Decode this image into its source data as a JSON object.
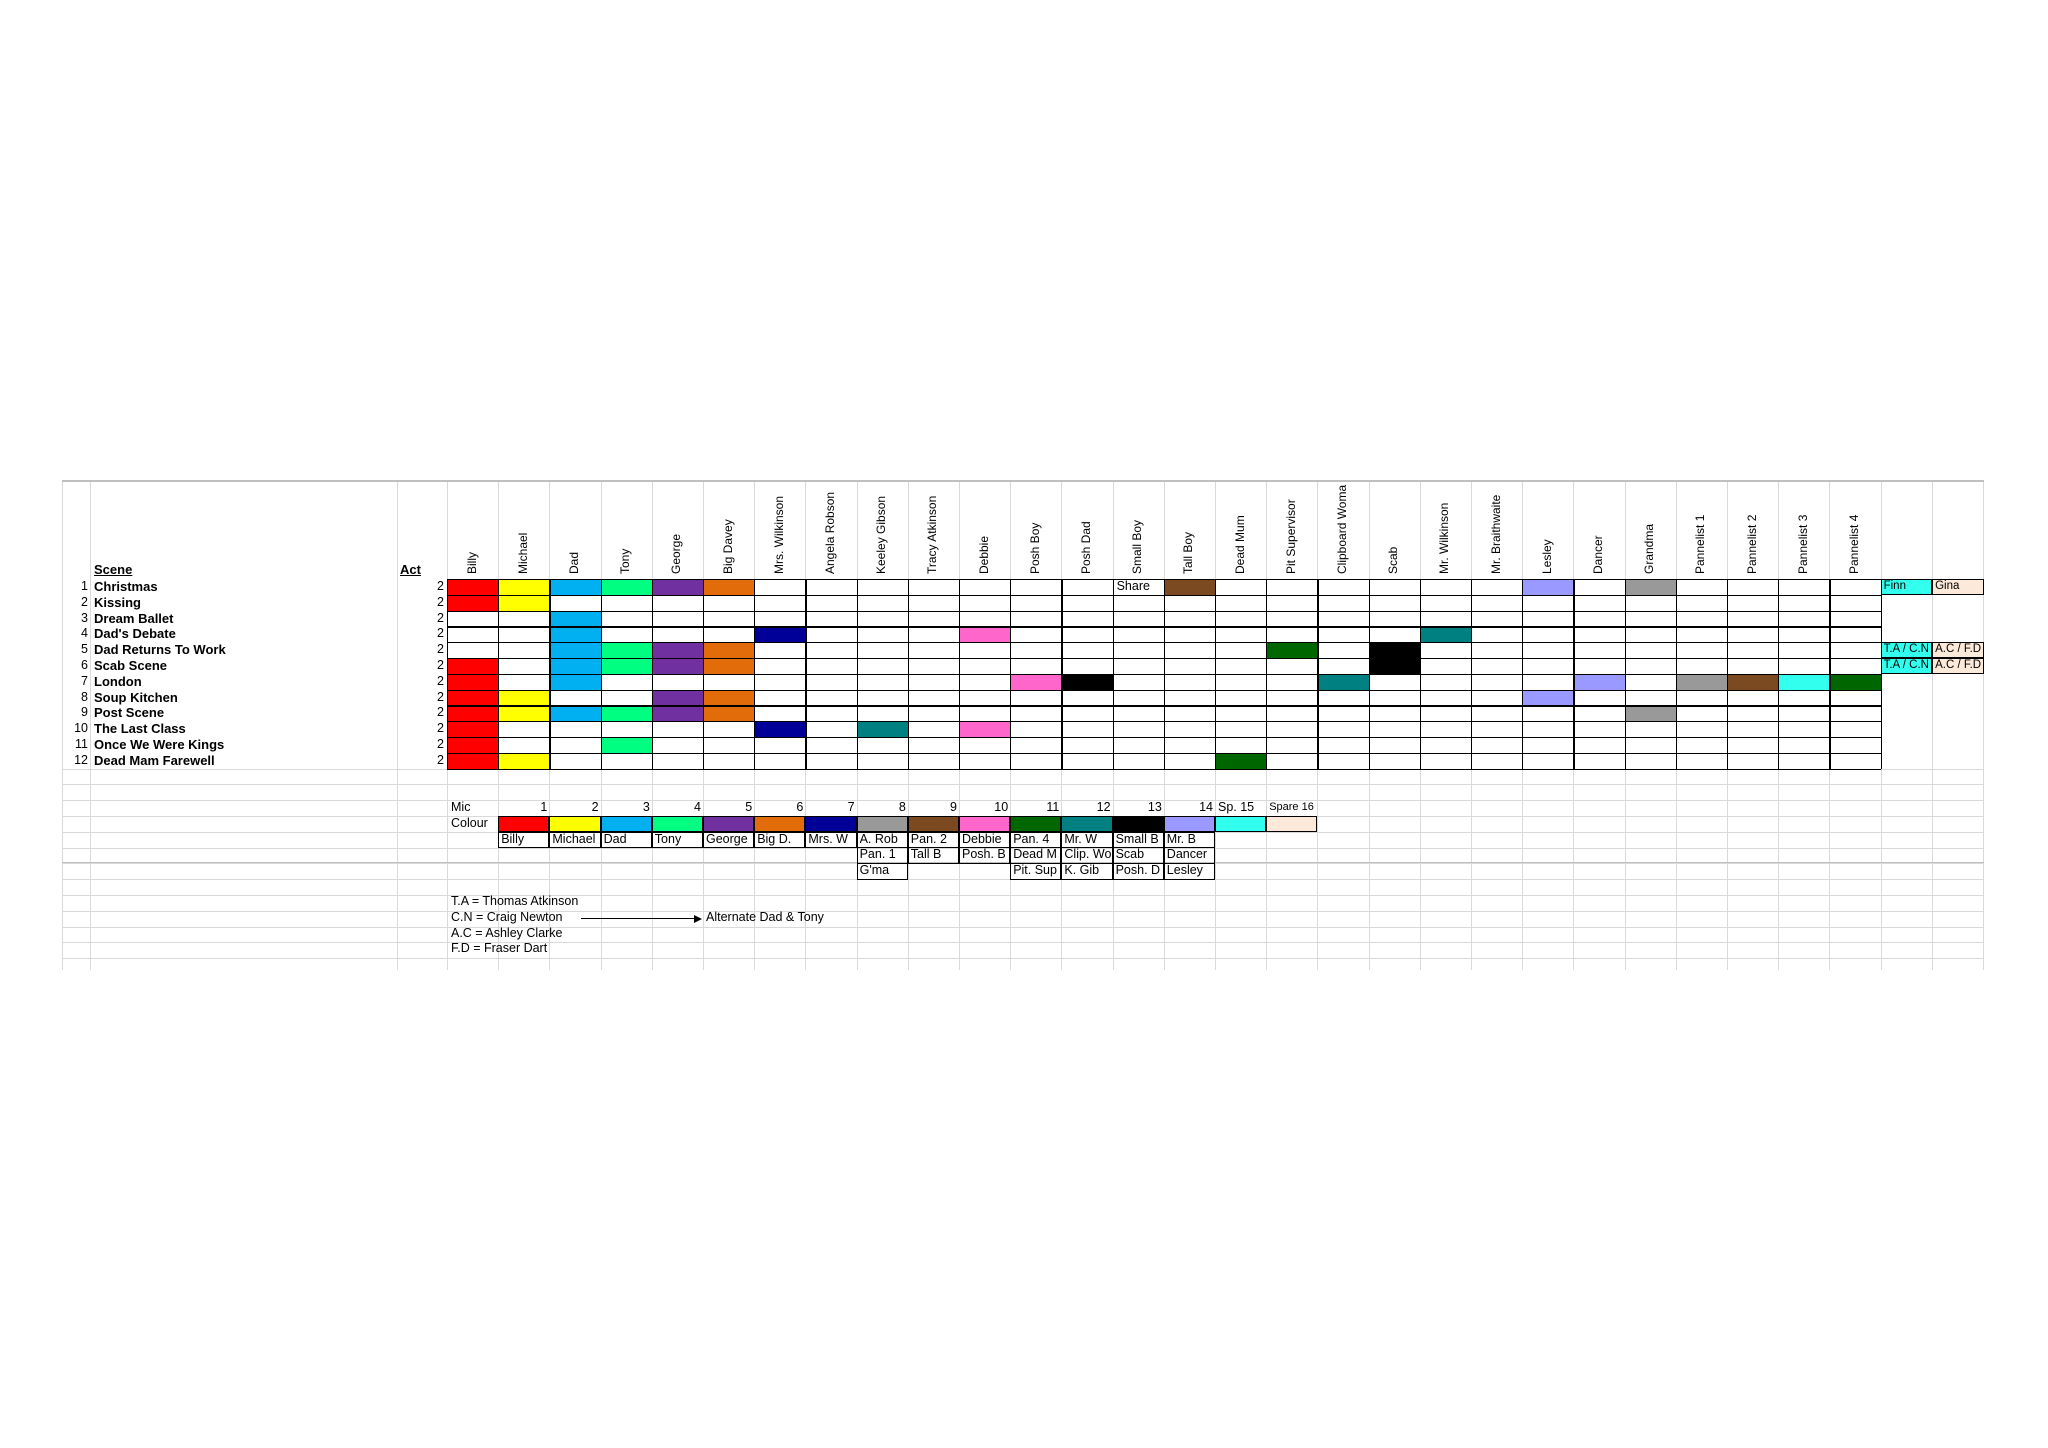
{
  "headers": {
    "scene": "Scene",
    "act": "Act"
  },
  "characters": [
    "Billy",
    "Michael",
    "Dad",
    "Tony",
    "George",
    "Big Davey",
    "Mrs. Wilkinson",
    "Angela Robson",
    "Keeley Gibson",
    "Tracy Atkinson",
    "Debbie",
    "Posh Boy",
    "Posh Dad",
    "Small Boy",
    "Tall Boy",
    "Dead Mum",
    "Pit Supervisor",
    "Clipboard Woma",
    "Scab",
    "Mr. Wilkinson",
    "Mr. Braithwaite",
    "Lesley",
    "Dancer",
    "Grandma",
    "Pannelist 1",
    "Pannelist 2",
    "Pannelist 3",
    "Pannelist 4"
  ],
  "scenes": [
    {
      "num": "1",
      "name": "Christmas",
      "act": "2"
    },
    {
      "num": "2",
      "name": "Kissing",
      "act": "2"
    },
    {
      "num": "3",
      "name": "Dream Ballet",
      "act": "2"
    },
    {
      "num": "4",
      "name": "Dad's Debate",
      "act": "2"
    },
    {
      "num": "5",
      "name": "Dad Returns To Work",
      "act": "2"
    },
    {
      "num": "6",
      "name": "Scab Scene",
      "act": "2"
    },
    {
      "num": "7",
      "name": "London",
      "act": "2"
    },
    {
      "num": "8",
      "name": "Soup Kitchen",
      "act": "2"
    },
    {
      "num": "9",
      "name": "Post Scene",
      "act": "2"
    },
    {
      "num": "10",
      "name": "The Last Class",
      "act": "2"
    },
    {
      "num": "11",
      "name": "Once We Were Kings",
      "act": "2"
    },
    {
      "num": "12",
      "name": "Dead Mam Farewell",
      "act": "2"
    }
  ],
  "grid_fills": [
    {
      "row": 0,
      "col": 0,
      "color": "#ff0000"
    },
    {
      "row": 0,
      "col": 1,
      "color": "#ffff00"
    },
    {
      "row": 0,
      "col": 2,
      "color": "#00b0f0"
    },
    {
      "row": 0,
      "col": 3,
      "color": "#00ff80"
    },
    {
      "row": 0,
      "col": 4,
      "color": "#7030a0"
    },
    {
      "row": 0,
      "col": 5,
      "color": "#e26b0a"
    },
    {
      "row": 0,
      "col": 14,
      "color": "#7b4a21"
    },
    {
      "row": 0,
      "col": 21,
      "color": "#9999ff"
    },
    {
      "row": 0,
      "col": 23,
      "color": "#999999"
    },
    {
      "row": 1,
      "col": 0,
      "color": "#ff0000"
    },
    {
      "row": 1,
      "col": 1,
      "color": "#ffff00"
    },
    {
      "row": 2,
      "col": 2,
      "color": "#00b0f0"
    },
    {
      "row": 3,
      "col": 2,
      "color": "#00b0f0"
    },
    {
      "row": 3,
      "col": 6,
      "color": "#000099"
    },
    {
      "row": 3,
      "col": 10,
      "color": "#ff66cc"
    },
    {
      "row": 3,
      "col": 19,
      "color": "#008080"
    },
    {
      "row": 4,
      "col": 2,
      "color": "#00b0f0"
    },
    {
      "row": 4,
      "col": 3,
      "color": "#00ff80"
    },
    {
      "row": 4,
      "col": 4,
      "color": "#7030a0"
    },
    {
      "row": 4,
      "col": 5,
      "color": "#e26b0a"
    },
    {
      "row": 4,
      "col": 16,
      "color": "#006600"
    },
    {
      "row": 4,
      "col": 18,
      "color": "#000000"
    },
    {
      "row": 5,
      "col": 0,
      "color": "#ff0000"
    },
    {
      "row": 5,
      "col": 2,
      "color": "#00b0f0"
    },
    {
      "row": 5,
      "col": 3,
      "color": "#00ff80"
    },
    {
      "row": 5,
      "col": 4,
      "color": "#7030a0"
    },
    {
      "row": 5,
      "col": 5,
      "color": "#e26b0a"
    },
    {
      "row": 5,
      "col": 18,
      "color": "#000000"
    },
    {
      "row": 6,
      "col": 0,
      "color": "#ff0000"
    },
    {
      "row": 6,
      "col": 2,
      "color": "#00b0f0"
    },
    {
      "row": 6,
      "col": 11,
      "color": "#ff66cc"
    },
    {
      "row": 6,
      "col": 12,
      "color": "#000000"
    },
    {
      "row": 6,
      "col": 17,
      "color": "#008080"
    },
    {
      "row": 6,
      "col": 22,
      "color": "#9999ff"
    },
    {
      "row": 6,
      "col": 24,
      "color": "#999999"
    },
    {
      "row": 6,
      "col": 25,
      "color": "#7b4a21"
    },
    {
      "row": 6,
      "col": 26,
      "color": "#33ffee"
    },
    {
      "row": 6,
      "col": 27,
      "color": "#006600"
    },
    {
      "row": 7,
      "col": 0,
      "color": "#ff0000"
    },
    {
      "row": 7,
      "col": 1,
      "color": "#ffff00"
    },
    {
      "row": 7,
      "col": 4,
      "color": "#7030a0"
    },
    {
      "row": 7,
      "col": 5,
      "color": "#e26b0a"
    },
    {
      "row": 7,
      "col": 21,
      "color": "#9999ff"
    },
    {
      "row": 8,
      "col": 0,
      "color": "#ff0000"
    },
    {
      "row": 8,
      "col": 1,
      "color": "#ffff00"
    },
    {
      "row": 8,
      "col": 2,
      "color": "#00b0f0"
    },
    {
      "row": 8,
      "col": 3,
      "color": "#00ff80"
    },
    {
      "row": 8,
      "col": 4,
      "color": "#7030a0"
    },
    {
      "row": 8,
      "col": 5,
      "color": "#e26b0a"
    },
    {
      "row": 8,
      "col": 23,
      "color": "#999999"
    },
    {
      "row": 9,
      "col": 0,
      "color": "#ff0000"
    },
    {
      "row": 9,
      "col": 6,
      "color": "#000099"
    },
    {
      "row": 9,
      "col": 8,
      "color": "#008080"
    },
    {
      "row": 9,
      "col": 10,
      "color": "#ff66cc"
    },
    {
      "row": 10,
      "col": 0,
      "color": "#ff0000"
    },
    {
      "row": 10,
      "col": 3,
      "color": "#00ff80"
    },
    {
      "row": 11,
      "col": 0,
      "color": "#ff0000"
    },
    {
      "row": 11,
      "col": 1,
      "color": "#ffff00"
    },
    {
      "row": 11,
      "col": 15,
      "color": "#006600"
    }
  ],
  "grid_text": [
    {
      "row": 0,
      "col": 13,
      "text": "Share"
    }
  ],
  "extra_cols": [
    {
      "row": 0,
      "col": 0,
      "text": "Finn",
      "color": "#33ffee"
    },
    {
      "row": 0,
      "col": 1,
      "text": "Gina",
      "color": "#fde9d9"
    },
    {
      "row": 4,
      "col": 0,
      "text": "T.A / C.N",
      "color": "#33ffee"
    },
    {
      "row": 4,
      "col": 1,
      "text": "A.C / F.D",
      "color": "#fde9d9"
    },
    {
      "row": 5,
      "col": 0,
      "text": "T.A / C.N",
      "color": "#33ffee"
    },
    {
      "row": 5,
      "col": 1,
      "text": "A.C / F.D",
      "color": "#fde9d9"
    }
  ],
  "mic": {
    "mic_label": "Mic",
    "colour_label": "Colour",
    "numbers": [
      "1",
      "2",
      "3",
      "4",
      "5",
      "6",
      "7",
      "8",
      "9",
      "10",
      "11",
      "12",
      "13",
      "14",
      "Sp. 15",
      "Spare 16"
    ],
    "colours": [
      "#ff0000",
      "#ffff00",
      "#00b0f0",
      "#00ff80",
      "#7030a0",
      "#e26b0a",
      "#000099",
      "#999999",
      "#7b4a21",
      "#ff66cc",
      "#006600",
      "#008080",
      "#000000",
      "#9999ff",
      "#33ffee",
      "#fde9d9"
    ],
    "assign": [
      [
        "Billy"
      ],
      [
        "Michael"
      ],
      [
        "Dad"
      ],
      [
        "Tony"
      ],
      [
        "George"
      ],
      [
        "Big D."
      ],
      [
        "Mrs. W"
      ],
      [
        "A. Rob",
        "Pan. 1",
        "G'ma"
      ],
      [
        "Pan. 2",
        "Tall B"
      ],
      [
        "Debbie",
        "Posh. B"
      ],
      [
        "Pan. 4",
        "Dead M",
        "Pit. Sup"
      ],
      [
        "Mr. W",
        "Clip. Wo",
        "K. Gib"
      ],
      [
        "Small B",
        "Scab",
        "Posh. D"
      ],
      [
        "Mr. B",
        "Dancer",
        "Lesley"
      ]
    ]
  },
  "notes": [
    "T.A = Thomas Atkinson",
    "C.N = Craig Newton",
    "A.C = Ashley Clarke",
    "F.D = Fraser Dart"
  ],
  "arrow_note": "Alternate Dad & Tony"
}
